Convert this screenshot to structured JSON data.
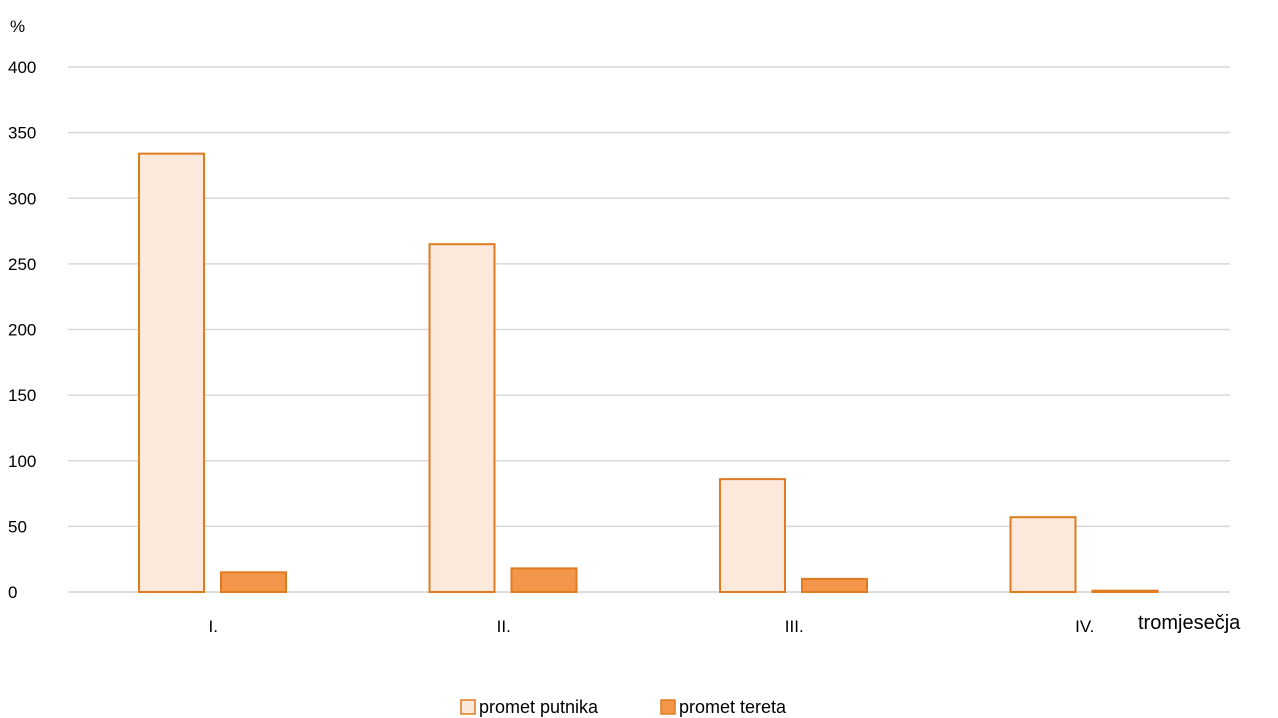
{
  "chart_data": {
    "type": "bar",
    "title": "",
    "ylabel": "%",
    "xlabel": "tromjesečja",
    "ylim": [
      0,
      400
    ],
    "yticks": [
      0,
      50,
      100,
      150,
      200,
      250,
      300,
      350,
      400
    ],
    "categories": [
      "I.",
      "II.",
      "III.",
      "IV."
    ],
    "series": [
      {
        "name": "promet putnika",
        "values": [
          334,
          265,
          86,
          57
        ],
        "fill": "#fce9db",
        "stroke": "#e07b22"
      },
      {
        "name": "promet tereta",
        "values": [
          15,
          18,
          10,
          1
        ],
        "fill": "#f4964a",
        "stroke": "#e07b22"
      }
    ],
    "grid": true,
    "legend_position": "bottom"
  }
}
